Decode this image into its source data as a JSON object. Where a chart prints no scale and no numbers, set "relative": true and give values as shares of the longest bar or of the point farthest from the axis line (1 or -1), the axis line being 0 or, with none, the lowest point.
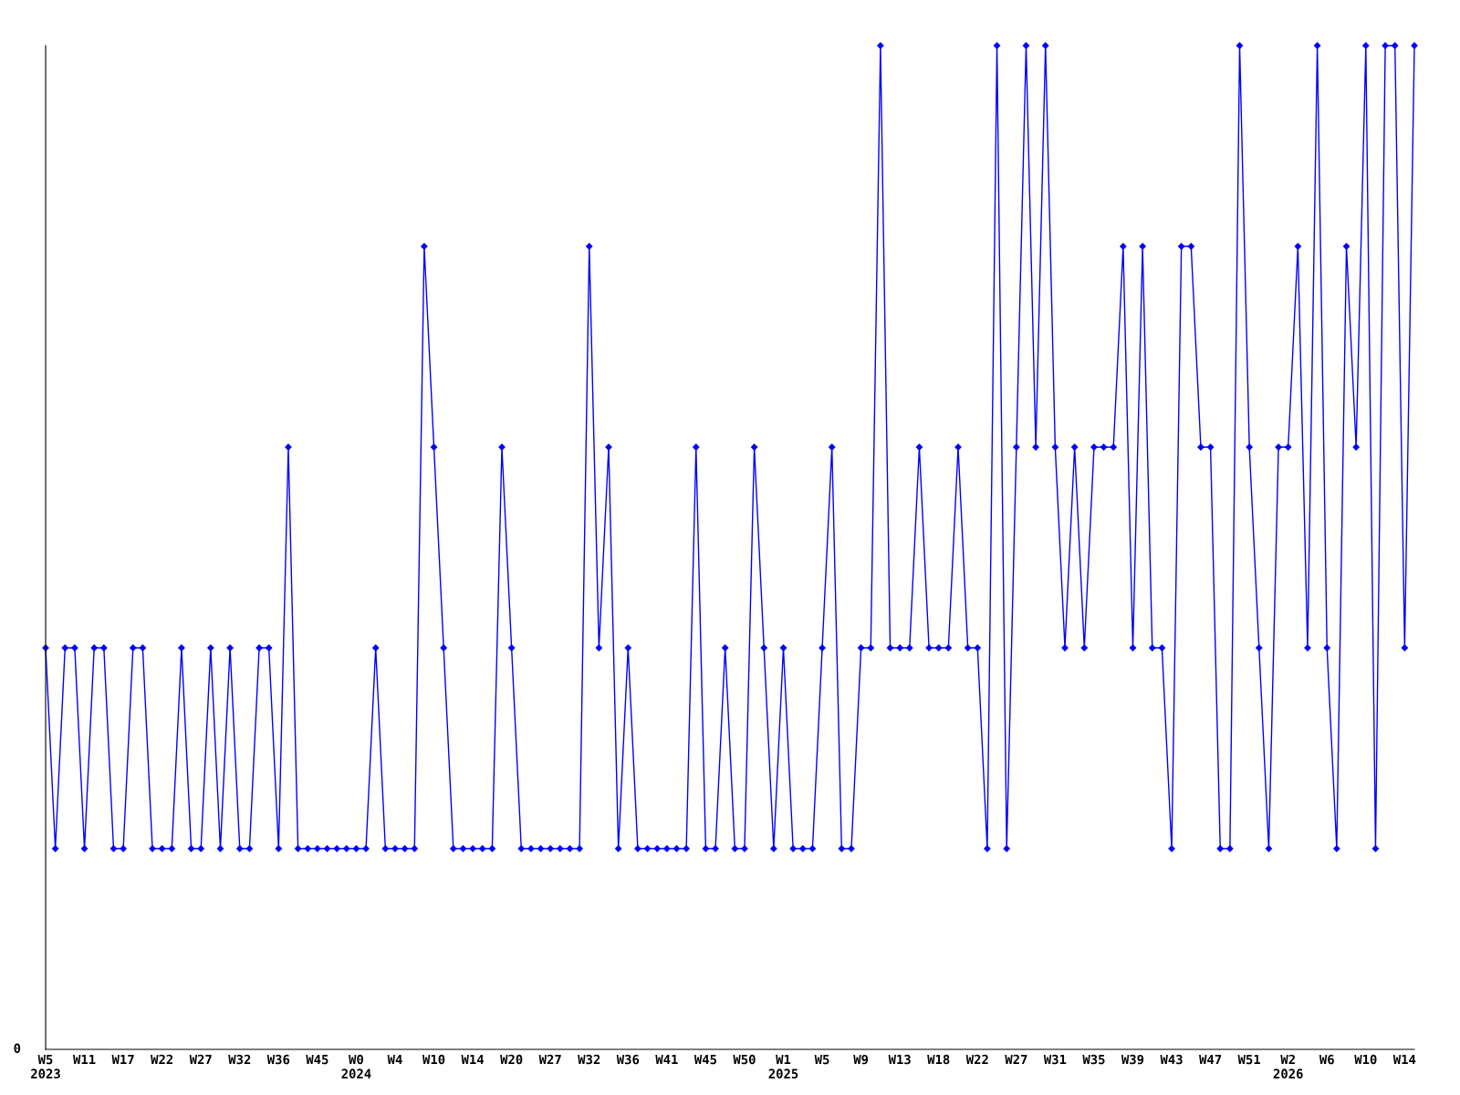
{
  "chart_data": {
    "type": "line",
    "relative": true,
    "marker": "diamond",
    "line_style": "solid",
    "grid": false,
    "legend": false,
    "annotations": [
      "0"
    ],
    "categories": [
      "W5\n2023",
      null,
      null,
      null,
      "W11",
      null,
      null,
      null,
      "W17",
      null,
      null,
      null,
      "W22",
      null,
      null,
      null,
      "W27",
      null,
      null,
      null,
      "W32",
      null,
      null,
      null,
      "W36",
      null,
      null,
      null,
      "W45",
      null,
      null,
      null,
      "W0\n2024",
      null,
      null,
      null,
      "W4",
      null,
      null,
      null,
      "W10",
      null,
      null,
      null,
      "W14",
      null,
      null,
      null,
      "W20",
      null,
      null,
      null,
      "W27",
      null,
      null,
      null,
      "W32",
      null,
      null,
      null,
      "W36",
      null,
      null,
      null,
      "W41",
      null,
      null,
      null,
      "W45",
      null,
      null,
      null,
      "W50",
      null,
      null,
      null,
      "W1\n2025",
      null,
      null,
      null,
      "W5",
      null,
      null,
      null,
      "W9",
      null,
      null,
      null,
      "W13",
      null,
      null,
      null,
      "W18",
      null,
      null,
      null,
      "W22",
      null,
      null,
      null,
      "W27",
      null,
      null,
      null,
      "W31",
      null,
      null,
      null,
      "W35",
      null,
      null,
      null,
      "W39",
      null,
      null,
      null,
      "W43",
      null,
      null,
      null,
      "W47",
      null,
      null,
      null,
      "W51",
      null,
      null,
      null,
      "W2\n2026",
      null,
      null,
      null,
      "W6",
      null,
      null,
      null,
      "W10",
      null,
      null,
      null,
      "W14",
      null
    ],
    "series": [
      {
        "color": "#0000ff",
        "values": [
          0.4,
          0.2,
          0.4,
          0.4,
          0.2,
          0.4,
          0.4,
          0.2,
          0.2,
          0.4,
          0.4,
          0.2,
          0.2,
          0.2,
          0.4,
          0.2,
          0.2,
          0.4,
          0.2,
          0.4,
          0.2,
          0.2,
          0.4,
          0.4,
          0.2,
          0.6,
          0.2,
          0.2,
          0.2,
          0.2,
          0.2,
          0.2,
          0.2,
          0.2,
          0.4,
          0.2,
          0.2,
          0.2,
          0.2,
          0.8,
          0.6,
          0.4,
          0.2,
          0.2,
          0.2,
          0.2,
          0.2,
          0.6,
          0.4,
          0.2,
          0.2,
          0.2,
          0.2,
          0.2,
          0.2,
          0.2,
          0.8,
          0.4,
          0.6,
          0.2,
          0.4,
          0.2,
          0.2,
          0.2,
          0.2,
          0.2,
          0.2,
          0.6,
          0.2,
          0.2,
          0.4,
          0.2,
          0.2,
          0.6,
          0.4,
          0.2,
          0.4,
          0.2,
          0.2,
          0.2,
          0.4,
          0.6,
          0.2,
          0.2,
          0.4,
          0.4,
          1,
          0.4,
          0.4,
          0.4,
          0.6,
          0.4,
          0.4,
          0.4,
          0.6,
          0.4,
          0.4,
          0.2,
          1,
          0.2,
          0.6,
          1,
          0.6,
          1,
          0.6,
          0.4,
          0.6,
          0.4,
          0.6,
          0.6,
          0.6,
          0.8,
          0.4,
          0.8,
          0.4,
          0.4,
          0.2,
          0.8,
          0.8,
          0.6,
          0.6,
          0.2,
          0.2,
          1,
          0.6,
          0.4,
          0.2,
          0.6,
          0.6,
          0.8,
          0.4,
          1,
          0.4,
          0.2,
          0.8,
          0.6,
          1,
          0.2,
          1,
          1,
          0.4,
          1
        ]
      }
    ]
  }
}
